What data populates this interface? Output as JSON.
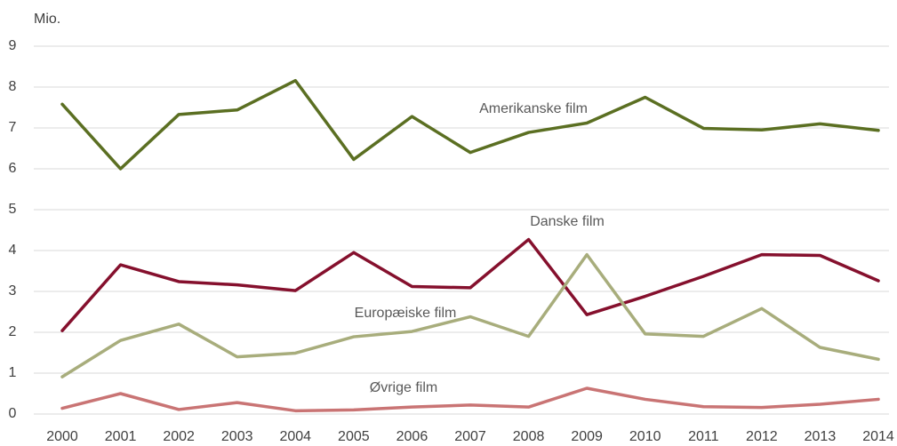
{
  "chart_data": {
    "type": "line",
    "y_unit_label": "Mio.",
    "categories": [
      "2000",
      "2001",
      "2002",
      "2003",
      "2004",
      "2005",
      "2006",
      "2007",
      "2008",
      "2009",
      "2010",
      "2011",
      "2012",
      "2013",
      "2014"
    ],
    "series": [
      {
        "name": "Amerikanske film",
        "color": "#5b6f22",
        "values": [
          7.58,
          6.0,
          7.33,
          7.44,
          8.16,
          6.23,
          7.28,
          6.4,
          6.89,
          7.12,
          7.75,
          6.99,
          6.95,
          7.1,
          6.94
        ]
      },
      {
        "name": "Danske film",
        "color": "#85102d",
        "values": [
          2.04,
          3.65,
          3.24,
          3.16,
          3.02,
          3.95,
          3.12,
          3.09,
          4.27,
          2.43,
          2.88,
          3.37,
          3.9,
          3.88,
          3.26
        ]
      },
      {
        "name": "Europæiske film",
        "color": "#a8ad7c",
        "values": [
          0.91,
          1.8,
          2.2,
          1.4,
          1.49,
          1.89,
          2.02,
          2.38,
          1.9,
          3.9,
          1.96,
          1.9,
          2.58,
          1.63,
          1.34
        ]
      },
      {
        "name": "Øvrige film",
        "color": "#c97474",
        "values": [
          0.14,
          0.5,
          0.11,
          0.28,
          0.08,
          0.1,
          0.17,
          0.22,
          0.17,
          0.63,
          0.36,
          0.18,
          0.16,
          0.24,
          0.36
        ]
      }
    ],
    "ylim": [
      0,
      9
    ],
    "yticks": [
      0,
      1,
      2,
      3,
      4,
      5,
      6,
      7,
      8,
      9
    ],
    "grid": true
  }
}
